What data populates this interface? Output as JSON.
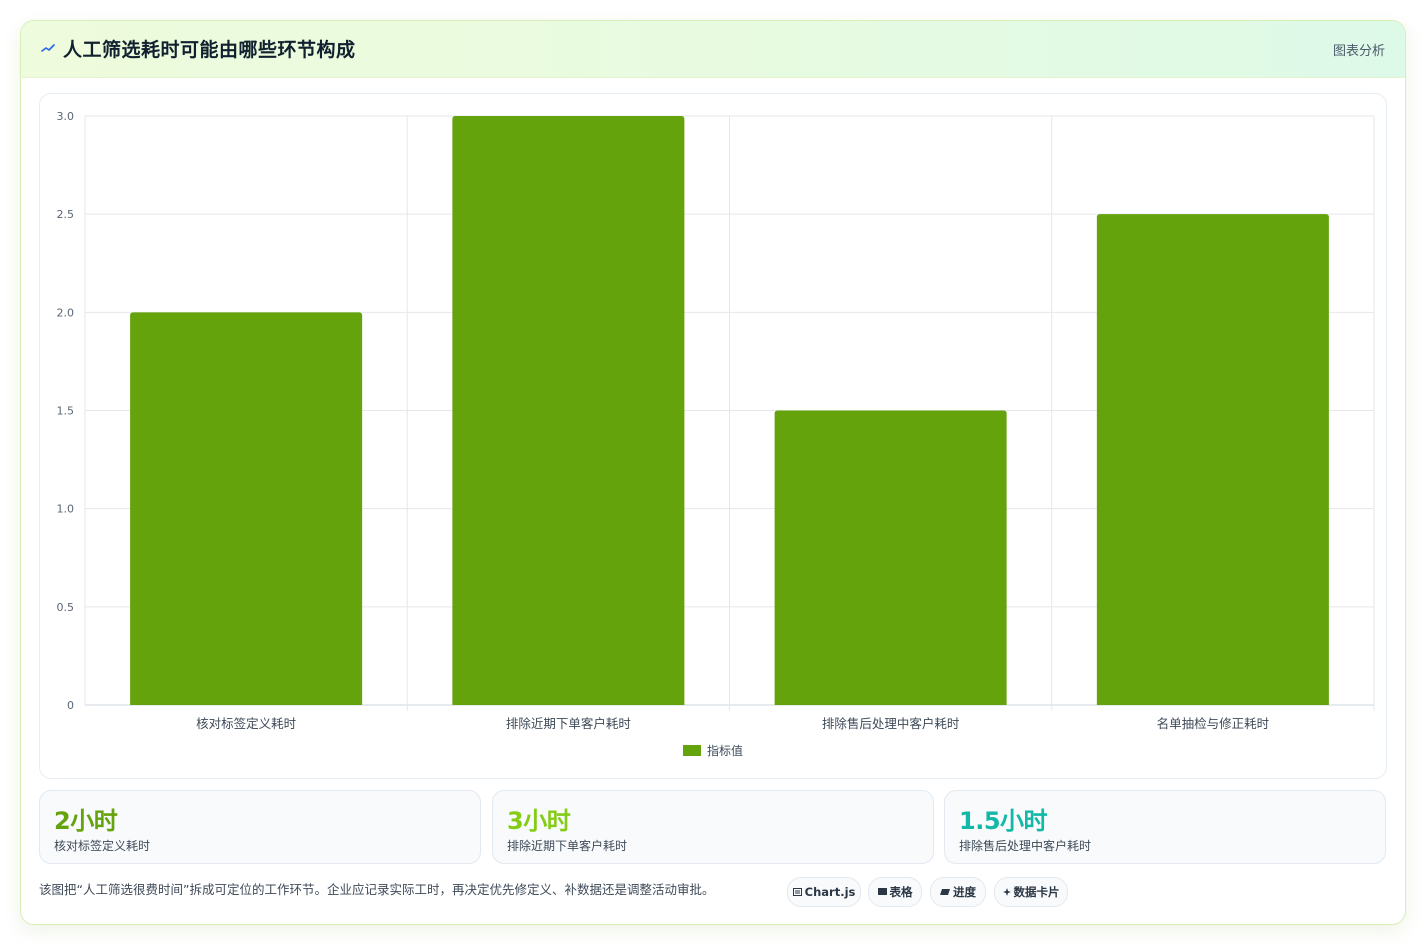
{
  "header": {
    "title": "人工筛选耗时可能由哪些环节构成",
    "tag": "图表分析"
  },
  "chart_data": {
    "type": "bar",
    "categories": [
      "核对标签定义耗时",
      "排除近期下单客户耗时",
      "排除售后处理中客户耗时",
      "名单抽检与修正耗时"
    ],
    "series": [
      {
        "name": "指标值",
        "values": [
          2,
          3,
          1.5,
          2.5
        ]
      }
    ],
    "y_ticks": [
      "0",
      "0.5",
      "1.0",
      "1.5",
      "2.0",
      "2.5",
      "3.0"
    ],
    "ylim": [
      0,
      3
    ],
    "grid": true,
    "legend_position": "bottom",
    "colors": {
      "bar": "#65a30d",
      "grid": "#e5e7eb",
      "axis": "#cfd6dd"
    }
  },
  "kpis": [
    {
      "value": "2小时",
      "label": "核对标签定义耗时",
      "color": "#65a30d"
    },
    {
      "value": "3小时",
      "label": "排除近期下单客户耗时",
      "color": "#84cc16"
    },
    {
      "value": "1.5小时",
      "label": "排除售后处理中客户耗时",
      "color": "#14b8a6"
    }
  ],
  "footer": {
    "note": "该图把“人工筛选很费时间”拆成可定位的工作环节。企业应记录实际工时，再决定优先修定义、补数据还是调整活动审批。",
    "chips": [
      {
        "icon": "chart-icon",
        "label": "Chart.js"
      },
      {
        "icon": "table-icon",
        "label": "表格"
      },
      {
        "icon": "progress-icon",
        "label": "进度"
      },
      {
        "icon": "sparkle-icon",
        "label": "数据卡片"
      }
    ]
  }
}
